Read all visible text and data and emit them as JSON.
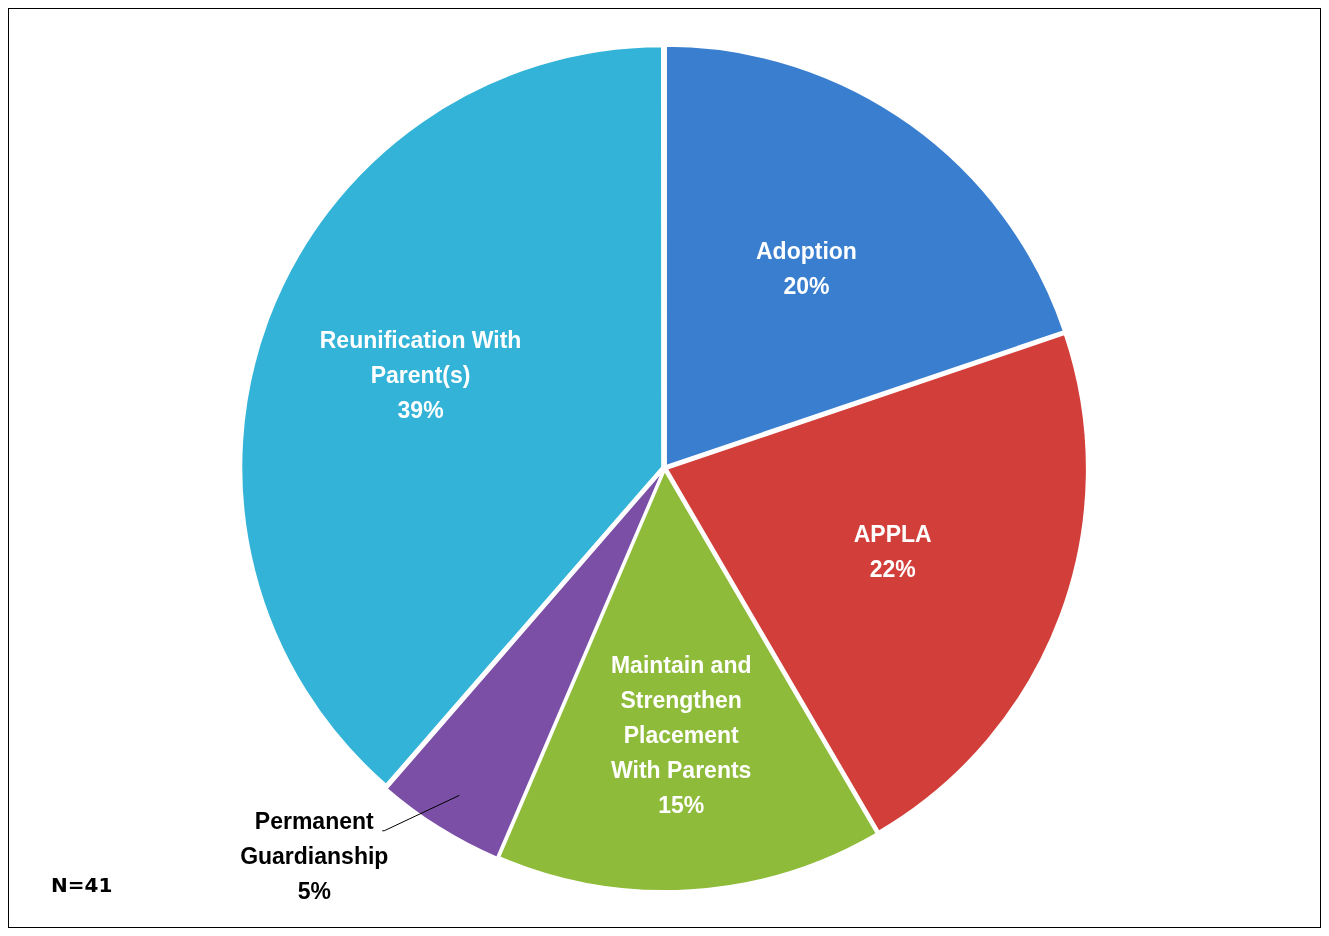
{
  "chart_data": {
    "type": "pie",
    "categories": [
      "Adoption",
      "APPLA",
      "Maintain and Strengthen Placement With Parents",
      "Permanent Guardianship",
      "Reunification With Parent(s)"
    ],
    "values": [
      20,
      22,
      15,
      5,
      39
    ],
    "colors": [
      "#3a7fcf",
      "#d23f3a",
      "#8fbb3a",
      "#7b4fa6",
      "#33b3d8"
    ],
    "value_labels": [
      "20%",
      "22%",
      "15%",
      "5%",
      "39%"
    ],
    "legend": false,
    "annotations": [
      "N=41"
    ]
  }
}
